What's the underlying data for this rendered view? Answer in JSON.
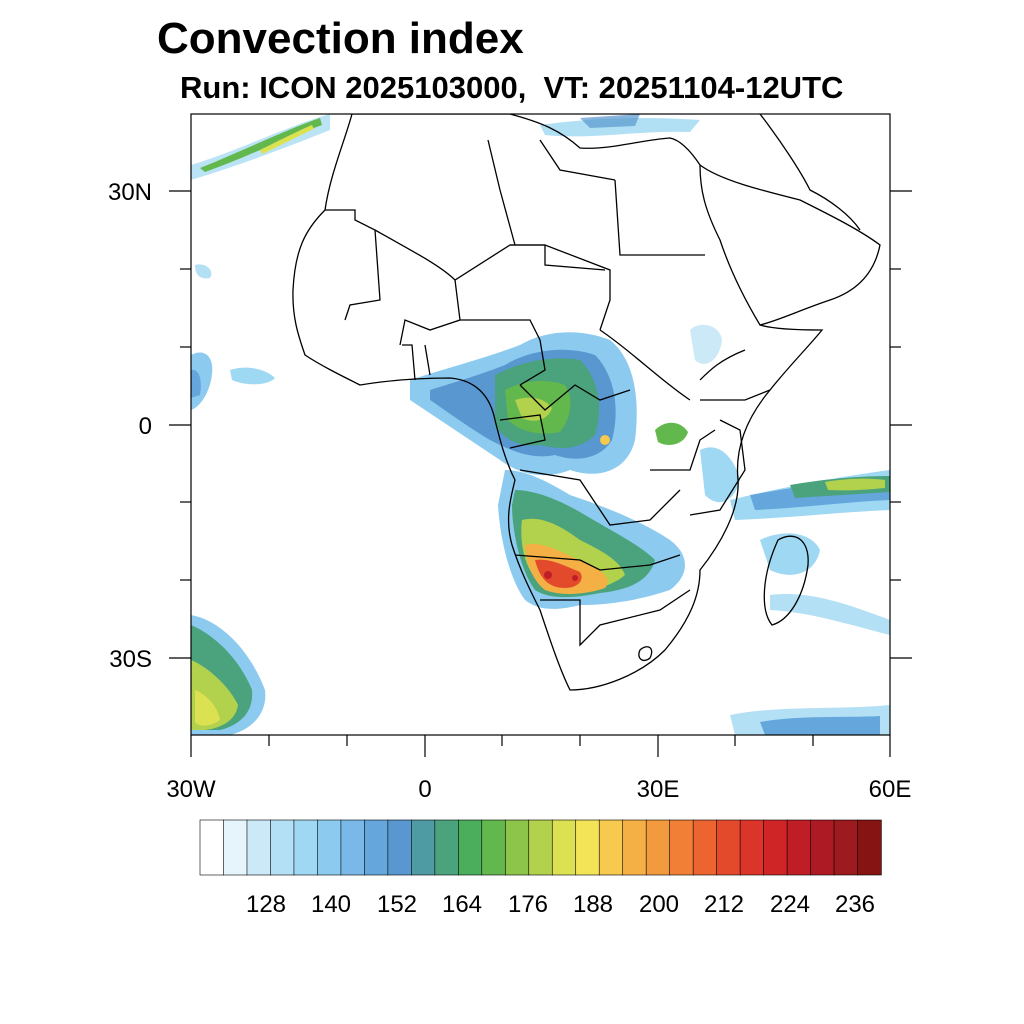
{
  "title": "Convection index",
  "subtitle": "Run: ICON 2025103000,  VT: 20251104-12UTC",
  "map": {
    "lat_labels": [
      "30N",
      "0",
      "30S"
    ],
    "lon_labels": [
      "30W",
      "0",
      "30E",
      "60E"
    ],
    "extent": {
      "lon_min": -30,
      "lon_max": 60,
      "lat_min": -40,
      "lat_max": 40
    }
  },
  "colorbar": {
    "tick_labels": [
      "128",
      "140",
      "152",
      "164",
      "176",
      "188",
      "200",
      "212",
      "224",
      "236"
    ],
    "colors": [
      "#ffffff",
      "#e6f4fb",
      "#cce9f7",
      "#b4e0f5",
      "#9ed8f3",
      "#8ccbef",
      "#79b8e8",
      "#65a7dd",
      "#5897cf",
      "#4e9ba4",
      "#4aa37c",
      "#4bae5c",
      "#62b84c",
      "#8cc54a",
      "#b2d14c",
      "#dbe151",
      "#f3e356",
      "#f7c94e",
      "#f5b045",
      "#f49a3e",
      "#f27f36",
      "#ec6530",
      "#e34a2c",
      "#db3429",
      "#cf2527",
      "#c01e26",
      "#ae1a23",
      "#9d1a1e",
      "#861412"
    ]
  }
}
